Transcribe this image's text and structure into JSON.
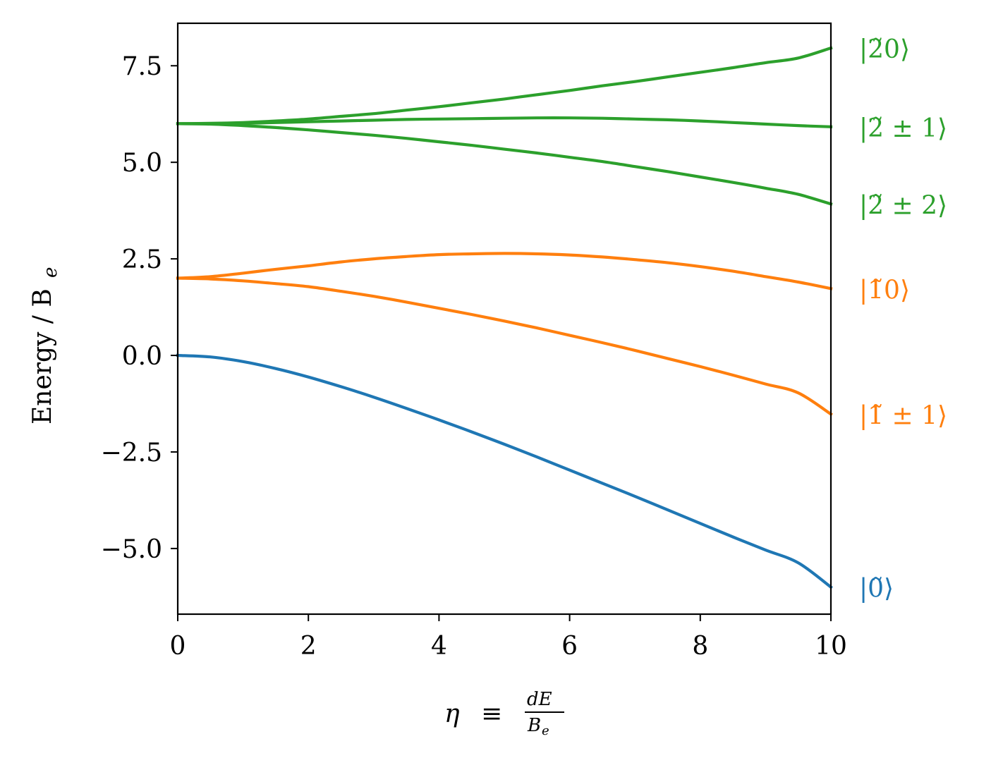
{
  "chart_data": {
    "type": "line",
    "xlabel": {
      "eta": "η",
      "equiv": "≡",
      "numerator": "dE",
      "denominator": "B",
      "denominator_sub": "e"
    },
    "ylabel": {
      "text": "Energy / B",
      "sub": "e"
    },
    "xlim": [
      0,
      10
    ],
    "ylim": [
      -6.7,
      8.6
    ],
    "xticks": [
      0,
      2,
      4,
      6,
      8,
      10
    ],
    "xtick_labels": [
      "0",
      "2",
      "4",
      "6",
      "8",
      "10"
    ],
    "yticks": [
      -5.0,
      -2.5,
      0.0,
      2.5,
      5.0,
      7.5
    ],
    "ytick_labels": [
      "−5.0",
      "−2.5",
      "0.0",
      "2.5",
      "5.0",
      "7.5"
    ],
    "grid": false,
    "x": [
      0,
      0.5,
      1,
      1.5,
      2,
      2.5,
      3,
      3.5,
      4,
      4.5,
      5,
      5.5,
      6,
      6.5,
      7,
      7.5,
      8,
      8.5,
      9,
      9.5,
      10
    ],
    "series": [
      {
        "label_text": "|0̃⟩",
        "color": "#1f77b4",
        "values": [
          0.0,
          -0.04,
          -0.16,
          -0.34,
          -0.56,
          -0.81,
          -1.08,
          -1.37,
          -1.67,
          -1.98,
          -2.3,
          -2.63,
          -2.97,
          -3.31,
          -3.65,
          -4.0,
          -4.35,
          -4.7,
          -5.04,
          -5.37,
          -6.0
        ]
      },
      {
        "label_text": "|1̃0⟩",
        "color": "#ff7f0e",
        "values": [
          2.0,
          2.04,
          2.13,
          2.23,
          2.32,
          2.42,
          2.5,
          2.56,
          2.61,
          2.63,
          2.64,
          2.63,
          2.6,
          2.55,
          2.48,
          2.4,
          2.3,
          2.18,
          2.04,
          1.9,
          1.73
        ]
      },
      {
        "label_text": "|1̃ ± 1⟩",
        "color": "#ff7f0e",
        "values": [
          2.0,
          1.98,
          1.93,
          1.86,
          1.78,
          1.66,
          1.53,
          1.38,
          1.22,
          1.06,
          0.89,
          0.71,
          0.52,
          0.33,
          0.13,
          -0.08,
          -0.29,
          -0.51,
          -0.74,
          -0.97,
          -1.52
        ]
      },
      {
        "label_text": "|2̃0⟩",
        "color": "#2ca02c",
        "values": [
          6.0,
          6.01,
          6.03,
          6.07,
          6.12,
          6.19,
          6.26,
          6.35,
          6.44,
          6.54,
          6.64,
          6.75,
          6.86,
          6.98,
          7.09,
          7.21,
          7.33,
          7.45,
          7.58,
          7.7,
          7.96
        ]
      },
      {
        "label_text": "|2̃ ± 1⟩",
        "color": "#2ca02c",
        "values": [
          6.0,
          6.0,
          6.01,
          6.03,
          6.05,
          6.07,
          6.09,
          6.11,
          6.12,
          6.13,
          6.14,
          6.15,
          6.15,
          6.14,
          6.12,
          6.1,
          6.07,
          6.03,
          5.99,
          5.95,
          5.92
        ]
      },
      {
        "label_text": "|2̃ ± 2⟩",
        "color": "#2ca02c",
        "values": [
          6.0,
          5.99,
          5.95,
          5.9,
          5.84,
          5.77,
          5.7,
          5.62,
          5.53,
          5.44,
          5.34,
          5.24,
          5.13,
          5.02,
          4.89,
          4.76,
          4.62,
          4.48,
          4.33,
          4.17,
          3.92
        ]
      }
    ],
    "state_labels": [
      {
        "text": "|2̃0⟩",
        "color": "#2ca02c",
        "y": 7.96
      },
      {
        "text": "|2̃ ± 1⟩",
        "color": "#2ca02c",
        "y": 5.92
      },
      {
        "text": "|2̃ ± 2⟩",
        "color": "#2ca02c",
        "y": 3.92
      },
      {
        "text": "|1̃0⟩",
        "color": "#ff7f0e",
        "y": 1.73
      },
      {
        "text": "|1̃ ± 1⟩",
        "color": "#ff7f0e",
        "y": -1.52
      },
      {
        "text": "|0̃⟩",
        "color": "#1f77b4",
        "y": -6.0
      }
    ]
  }
}
